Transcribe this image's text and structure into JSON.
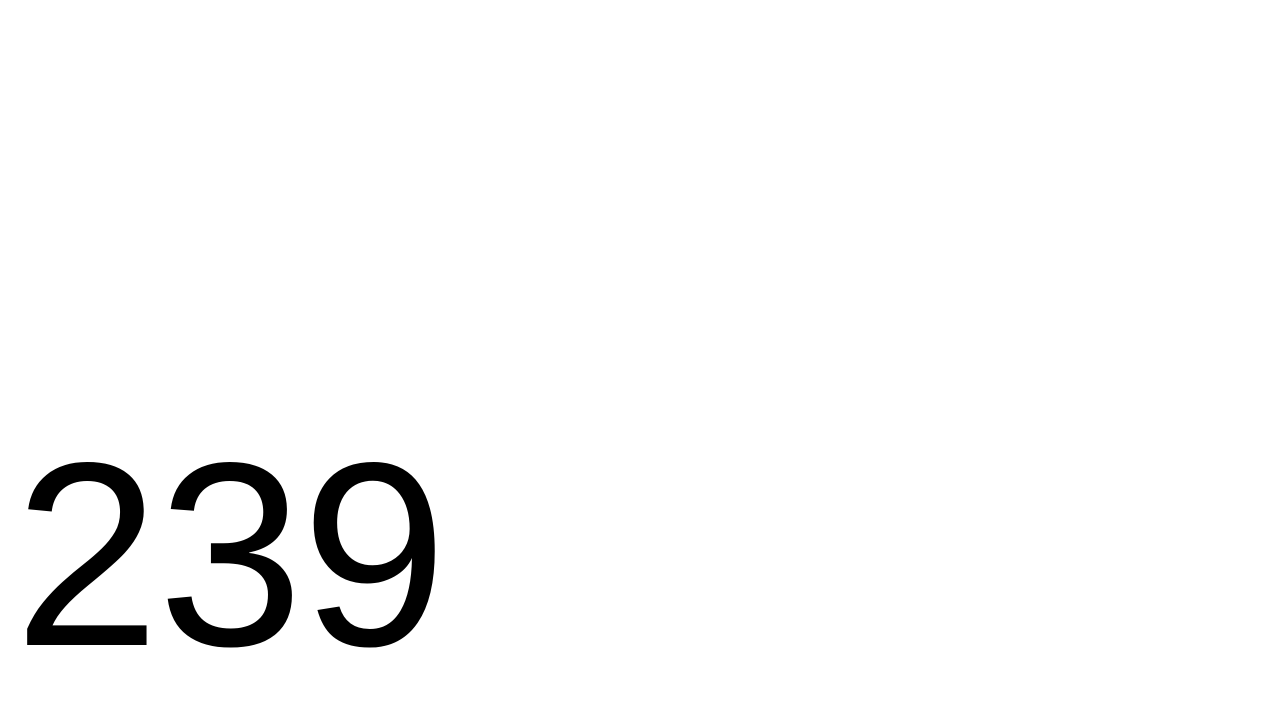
{
  "display": {
    "value": "239"
  },
  "colors": {
    "background": "#ffffff",
    "text": "#000000"
  }
}
